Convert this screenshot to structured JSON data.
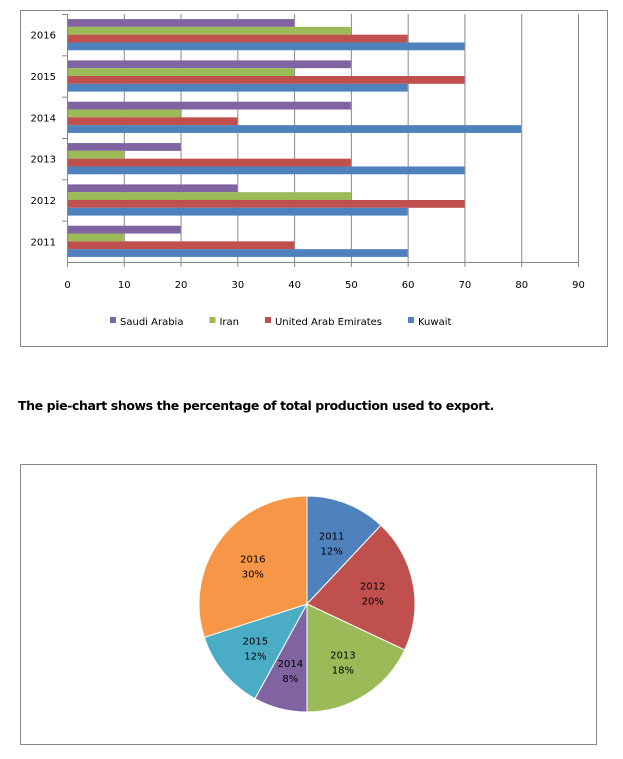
{
  "chart_data": [
    {
      "type": "bar",
      "orientation": "horizontal",
      "categories": [
        "2011",
        "2012",
        "2013",
        "2014",
        "2015",
        "2016"
      ],
      "series": [
        {
          "name": "Kuwait",
          "color": "#4F81BD",
          "values": [
            60,
            60,
            70,
            80,
            60,
            70
          ]
        },
        {
          "name": "United Arab Emirates",
          "color": "#C0504D",
          "values": [
            40,
            70,
            50,
            30,
            70,
            60
          ]
        },
        {
          "name": "Iran",
          "color": "#9BBB59",
          "values": [
            10,
            50,
            10,
            20,
            40,
            50
          ]
        },
        {
          "name": "Saudi Arabia",
          "color": "#8064A2",
          "values": [
            20,
            30,
            20,
            50,
            50,
            40
          ]
        }
      ],
      "legend_order": [
        "Saudi Arabia",
        "Iran",
        "United Arab Emirates",
        "Kuwait"
      ],
      "xlim": [
        0,
        90
      ],
      "xticks": [
        "0",
        "10",
        "20",
        "30",
        "40",
        "50",
        "60",
        "70",
        "80",
        "90"
      ],
      "grid": true,
      "legend_position": "bottom"
    },
    {
      "type": "pie",
      "title": "The pie-chart shows the percentage of total production used to export.",
      "slices": [
        {
          "label": "2011",
          "value": 12,
          "text": "12%",
          "color": "#4F81BD"
        },
        {
          "label": "2012",
          "value": 20,
          "text": "20%",
          "color": "#C0504D"
        },
        {
          "label": "2013",
          "value": 18,
          "text": "18%",
          "color": "#9BBB59"
        },
        {
          "label": "2014",
          "value": 8,
          "text": "8%",
          "color": "#8064A2"
        },
        {
          "label": "2015",
          "value": 12,
          "text": "12%",
          "color": "#4BACC6"
        },
        {
          "label": "2016",
          "value": 30,
          "text": "30%",
          "color": "#F79646"
        }
      ]
    }
  ]
}
